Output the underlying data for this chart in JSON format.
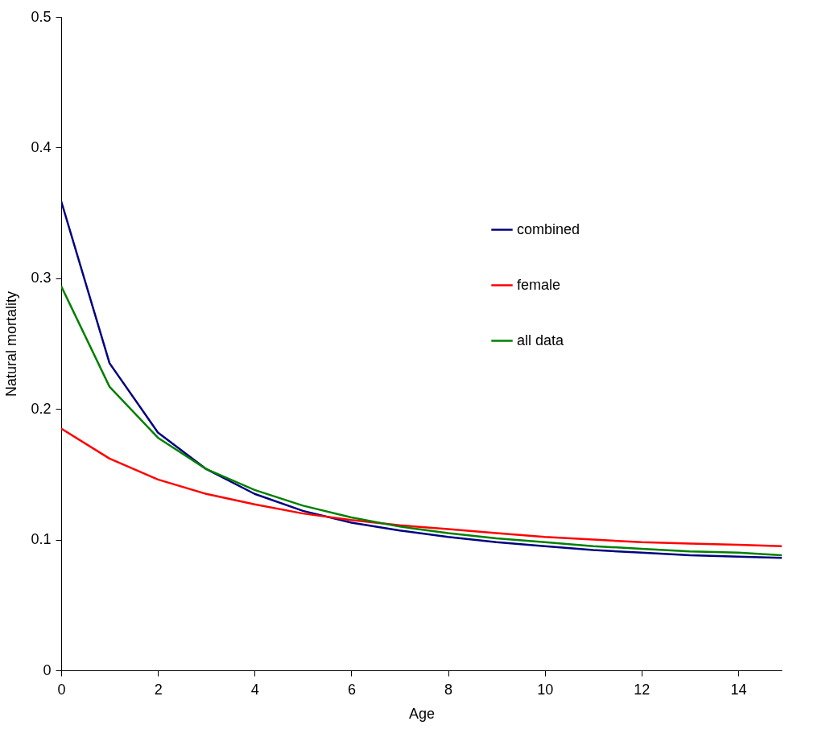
{
  "chart_data": {
    "type": "line",
    "xlabel": "Age",
    "ylabel": "Natural mortality",
    "x": [
      0,
      1,
      2,
      3,
      4,
      5,
      6,
      7,
      8,
      9,
      10,
      11,
      12,
      13,
      14,
      14.9
    ],
    "series": [
      {
        "name": "combined",
        "color": "#000080",
        "values": [
          0.359,
          0.235,
          0.182,
          0.154,
          0.135,
          0.122,
          0.113,
          0.107,
          0.102,
          0.098,
          0.095,
          0.092,
          0.09,
          0.088,
          0.087,
          0.086
        ]
      },
      {
        "name": "female",
        "color": "#ff0000",
        "values": [
          0.185,
          0.162,
          0.146,
          0.135,
          0.127,
          0.12,
          0.115,
          0.111,
          0.108,
          0.105,
          0.102,
          0.1,
          0.098,
          0.097,
          0.096,
          0.095
        ]
      },
      {
        "name": "all data",
        "color": "#008000",
        "values": [
          0.294,
          0.217,
          0.178,
          0.154,
          0.138,
          0.126,
          0.117,
          0.11,
          0.105,
          0.101,
          0.098,
          0.095,
          0.093,
          0.091,
          0.09,
          0.088
        ]
      }
    ],
    "xlim": [
      0,
      14.9
    ],
    "xticks": [
      0,
      2,
      4,
      6,
      8,
      10,
      12,
      14
    ],
    "ylim": [
      0,
      0.5
    ],
    "yticks": [
      0,
      0.1,
      0.2,
      0.3,
      0.4,
      0.5
    ],
    "grid": false,
    "legend": "top right",
    "marker": "none",
    "line_style": "solid"
  }
}
